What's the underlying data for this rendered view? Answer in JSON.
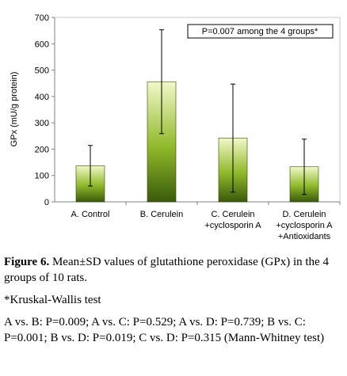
{
  "chart_data": {
    "type": "bar",
    "ylabel": "GPx (mU/g protein)",
    "ylim": [
      0,
      700
    ],
    "yticks": [
      0,
      100,
      200,
      300,
      400,
      500,
      600,
      700
    ],
    "grid": false,
    "categories": [
      [
        "A. Control"
      ],
      [
        "B. Cerulein"
      ],
      [
        "C. Cerulein",
        "+cyclosporin A"
      ],
      [
        "D. Cerulein",
        "+cyclosporin A",
        "+Antioxidants"
      ]
    ],
    "values": [
      137,
      456,
      242,
      133
    ],
    "sd": [
      77,
      197,
      205,
      105
    ],
    "annotation": "P=0.007 among the 4 groups*",
    "colors": {
      "bar_top": "#f2f8c8",
      "bar_mid": "#8fb82a",
      "bar_bottom": "#3a5a0a",
      "axis": "#808080"
    }
  },
  "caption": {
    "figure_label": "Figure 6.",
    "figure_text": "Mean±SD values of glutathione peroxidase (GPx) in the 4 groups of 10 rats.",
    "footnote": "*Kruskal-Wallis test",
    "comparisons": "A vs. B: P=0.009; A vs. C: P=0.529; A vs. D: P=0.739; B vs. C: P=0.001; B vs. D: P=0.019; C vs. D: P=0.315 (Mann-Whitney test)"
  }
}
